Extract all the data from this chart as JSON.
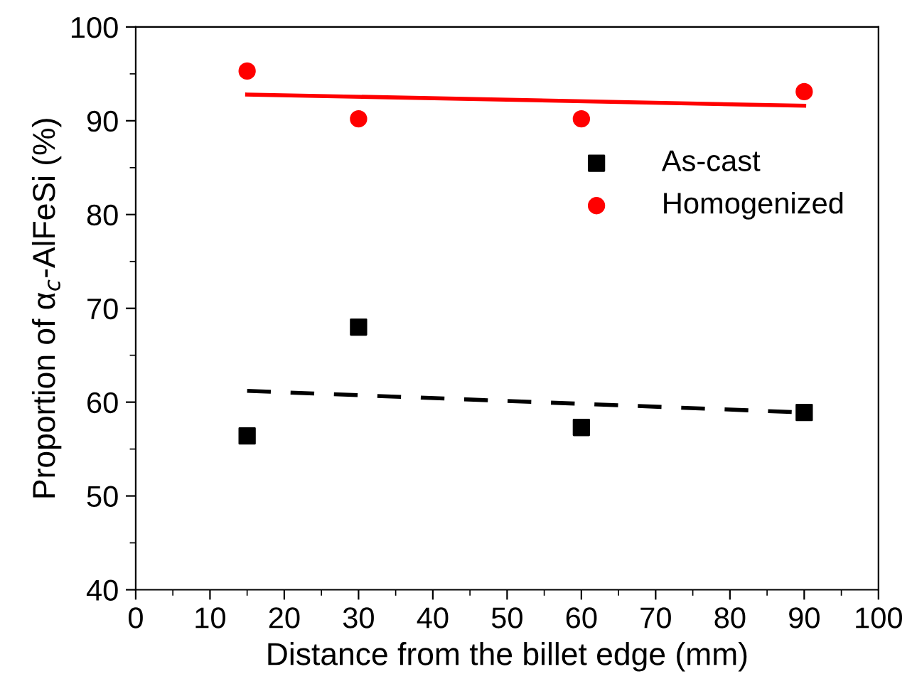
{
  "chart_data": {
    "type": "scatter",
    "xlabel": "Distance from the billet edge (mm)",
    "ylabel": "Proportion of α$_{c}$-AlFeSi (%)",
    "xlim": [
      0,
      100
    ],
    "xticks": [
      0,
      10,
      20,
      30,
      40,
      50,
      60,
      70,
      80,
      90,
      100
    ],
    "ylim": [
      40,
      100
    ],
    "yticks": [
      40,
      50,
      60,
      70,
      80,
      90,
      100
    ],
    "legend": "right",
    "grid": false,
    "series": [
      {
        "name": "As-cast",
        "color": "#000000",
        "marker": "square",
        "x": [
          15,
          30,
          60,
          90
        ],
        "values": [
          56.4,
          68.0,
          57.3,
          58.9
        ]
      },
      {
        "name": "Homogenized",
        "color": "#ff0000",
        "marker": "circle",
        "x": [
          15,
          30,
          60,
          90
        ],
        "values": [
          95.3,
          90.2,
          90.2,
          93.1
        ]
      },
      {
        "type": "line",
        "color": "#000000",
        "line_style": "dashed",
        "x": [
          15,
          90
        ],
        "values": [
          61.2,
          58.9
        ]
      },
      {
        "type": "line",
        "color": "#ff0000",
        "line_style": "solid",
        "x": [
          15,
          90
        ],
        "values": [
          92.8,
          91.6
        ]
      }
    ]
  }
}
